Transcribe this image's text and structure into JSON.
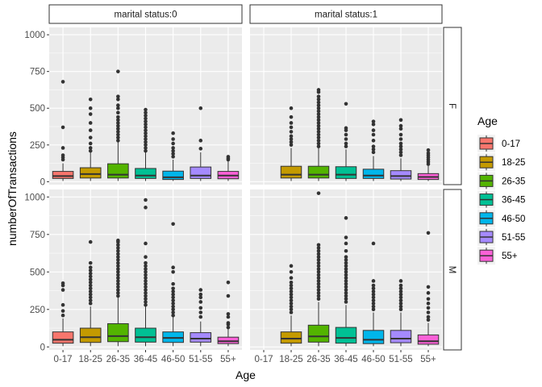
{
  "chart_data": {
    "type": "boxplot",
    "xlabel": "Age",
    "ylabel": "numberOfTransactions",
    "categories": [
      "0-17",
      "18-25",
      "26-35",
      "36-45",
      "46-50",
      "51-55",
      "55+"
    ],
    "ylim": [
      -20,
      1050
    ],
    "yticks": [
      0,
      250,
      500,
      750,
      1000
    ],
    "ytick_labels": [
      "0",
      "250",
      "500",
      "750",
      "1000"
    ],
    "grid": true,
    "legend": {
      "title": "Age",
      "position": "right",
      "labels": [
        "0-17",
        "18-25",
        "26-35",
        "36-45",
        "46-50",
        "51-55",
        "55+"
      ]
    },
    "colors": [
      "#F8766D",
      "#C49A00",
      "#53B400",
      "#00C094",
      "#00B6EB",
      "#A58AFF",
      "#FB61D7"
    ],
    "col_facets": [
      "marital status:0",
      "marital status:1"
    ],
    "row_facets": [
      "F",
      "M"
    ],
    "panels": [
      {
        "col": 0,
        "row": 0,
        "boxes": [
          {
            "cat": "0-17",
            "min": 5,
            "q1": 22,
            "median": 38,
            "q3": 70,
            "max": 125,
            "outliers": [
              150,
              165,
              180,
              230,
              370,
              680
            ]
          },
          {
            "cat": "18-25",
            "min": 5,
            "q1": 25,
            "median": 52,
            "q3": 95,
            "max": 200,
            "outliers": [
              210,
              230,
              260,
              300,
              350,
              400,
              460,
              500,
              560
            ]
          },
          {
            "cat": "26-35",
            "min": 5,
            "q1": 25,
            "median": 48,
            "q3": 122,
            "max": 270,
            "outliers": [
              280,
              300,
              320,
              340,
              360,
              380,
              400,
              420,
              440,
              470,
              500,
              520,
              560,
              580,
              750
            ]
          },
          {
            "cat": "36-45",
            "min": 5,
            "q1": 22,
            "median": 42,
            "q3": 90,
            "max": 200,
            "outliers": [
              210,
              230,
              250,
              270,
              290,
              310,
              330,
              350,
              370,
              390,
              410,
              430,
              450,
              470,
              490
            ]
          },
          {
            "cat": "46-50",
            "min": 5,
            "q1": 15,
            "median": 30,
            "q3": 72,
            "max": 150,
            "outliers": [
              170,
              190,
              210,
              230,
              260,
              290,
              330
            ]
          },
          {
            "cat": "51-55",
            "min": 5,
            "q1": 22,
            "median": 42,
            "q3": 100,
            "max": 200,
            "outliers": [
              225,
              280,
              500
            ]
          },
          {
            "cat": "55+",
            "min": 5,
            "q1": 20,
            "median": 42,
            "q3": 70,
            "max": 140,
            "outliers": [
              150,
              160,
              170
            ]
          }
        ]
      },
      {
        "col": 1,
        "row": 0,
        "boxes": [
          {
            "cat": "18-25",
            "min": 5,
            "q1": 25,
            "median": 48,
            "q3": 105,
            "max": 230,
            "outliers": [
              250,
              270,
              290,
              310,
              340,
              370,
              400,
              440,
              500
            ]
          },
          {
            "cat": "26-35",
            "min": 5,
            "q1": 25,
            "median": 48,
            "q3": 105,
            "max": 230,
            "outliers": [
              240,
              260,
              280,
              300,
              320,
              340,
              360,
              380,
              400,
              420,
              440,
              460,
              480,
              500,
              520,
              540,
              560,
              580,
              610,
              625
            ]
          },
          {
            "cat": "36-45",
            "min": 5,
            "q1": 22,
            "median": 48,
            "q3": 102,
            "max": 220,
            "outliers": [
              240,
              260,
              290,
              320,
              350,
              365,
              530
            ]
          },
          {
            "cat": "46-50",
            "min": 5,
            "q1": 22,
            "median": 42,
            "q3": 85,
            "max": 175,
            "outliers": [
              200,
              220,
              240,
              280,
              320,
              350,
              390,
              410
            ]
          },
          {
            "cat": "51-55",
            "min": 5,
            "q1": 18,
            "median": 38,
            "q3": 75,
            "max": 160,
            "outliers": [
              180,
              200,
              220,
              240,
              260,
              290,
              320,
              360,
              380,
              420
            ]
          },
          {
            "cat": "55+",
            "min": 5,
            "q1": 15,
            "median": 32,
            "q3": 55,
            "max": 110,
            "outliers": [
              120,
              135,
              150,
              165,
              180,
              195,
              215
            ]
          }
        ]
      },
      {
        "col": 0,
        "row": 1,
        "boxes": [
          {
            "cat": "0-17",
            "min": 5,
            "q1": 25,
            "median": 48,
            "q3": 100,
            "max": 190,
            "outliers": [
              210,
              240,
              280,
              380,
              410,
              425
            ]
          },
          {
            "cat": "18-25",
            "min": 5,
            "q1": 30,
            "median": 65,
            "q3": 125,
            "max": 270,
            "outliers": [
              290,
              310,
              330,
              350,
              370,
              390,
              410,
              430,
              450,
              470,
              490,
              510,
              530,
              560,
              700
            ]
          },
          {
            "cat": "26-35",
            "min": 5,
            "q1": 35,
            "median": 72,
            "q3": 155,
            "max": 330,
            "outliers": [
              340,
              360,
              380,
              400,
              420,
              440,
              460,
              480,
              500,
              520,
              540,
              560,
              580,
              600,
              620,
              640,
              660,
              680,
              700,
              710
            ]
          },
          {
            "cat": "36-45",
            "min": 5,
            "q1": 32,
            "median": 65,
            "q3": 125,
            "max": 270,
            "outliers": [
              280,
              300,
              320,
              340,
              360,
              380,
              400,
              420,
              440,
              460,
              480,
              500,
              520,
              540,
              560,
              600,
              690,
              930,
              980
            ]
          },
          {
            "cat": "46-50",
            "min": 5,
            "q1": 30,
            "median": 60,
            "q3": 100,
            "max": 200,
            "outliers": [
              210,
              230,
              250,
              270,
              290,
              310,
              330,
              350,
              370,
              390,
              420,
              500,
              530,
              820
            ]
          },
          {
            "cat": "51-55",
            "min": 5,
            "q1": 32,
            "median": 55,
            "q3": 95,
            "max": 170,
            "outliers": [
              200,
              230,
              260,
              300,
              330,
              350,
              380
            ]
          },
          {
            "cat": "55+",
            "min": 5,
            "q1": 22,
            "median": 38,
            "q3": 65,
            "max": 120,
            "outliers": [
              130,
              150,
              160,
              200,
              220,
              340,
              430
            ]
          }
        ]
      },
      {
        "col": 1,
        "row": 1,
        "boxes": [
          {
            "cat": "18-25",
            "min": 5,
            "q1": 25,
            "median": 55,
            "q3": 100,
            "max": 210,
            "outliers": [
              230,
              250,
              270,
              290,
              310,
              330,
              350,
              370,
              390,
              410,
              430,
              460,
              500,
              540
            ]
          },
          {
            "cat": "26-35",
            "min": 5,
            "q1": 32,
            "median": 70,
            "q3": 145,
            "max": 300,
            "outliers": [
              320,
              340,
              360,
              380,
              400,
              420,
              440,
              460,
              480,
              500,
              520,
              540,
              560,
              580,
              600,
              620,
              640,
              660,
              680,
              1025
            ]
          },
          {
            "cat": "36-45",
            "min": 5,
            "q1": 25,
            "median": 60,
            "q3": 130,
            "max": 280,
            "outliers": [
              300,
              320,
              340,
              360,
              380,
              400,
              420,
              440,
              460,
              480,
              500,
              520,
              540,
              560,
              580,
              600,
              640,
              690,
              730,
              860
            ]
          },
          {
            "cat": "46-50",
            "min": 5,
            "q1": 22,
            "median": 48,
            "q3": 110,
            "max": 230,
            "outliers": [
              250,
              270,
              290,
              310,
              330,
              350,
              370,
              390,
              410,
              440,
              690
            ]
          },
          {
            "cat": "51-55",
            "min": 5,
            "q1": 28,
            "median": 55,
            "q3": 110,
            "max": 230,
            "outliers": [
              250,
              270,
              290,
              310,
              330,
              350,
              370,
              390,
              410,
              440
            ]
          },
          {
            "cat": "55+",
            "min": 5,
            "q1": 18,
            "median": 38,
            "q3": 80,
            "max": 160,
            "outliers": [
              180,
              200,
              230,
              260,
              290,
              320,
              360,
              400,
              760
            ]
          }
        ]
      }
    ]
  }
}
